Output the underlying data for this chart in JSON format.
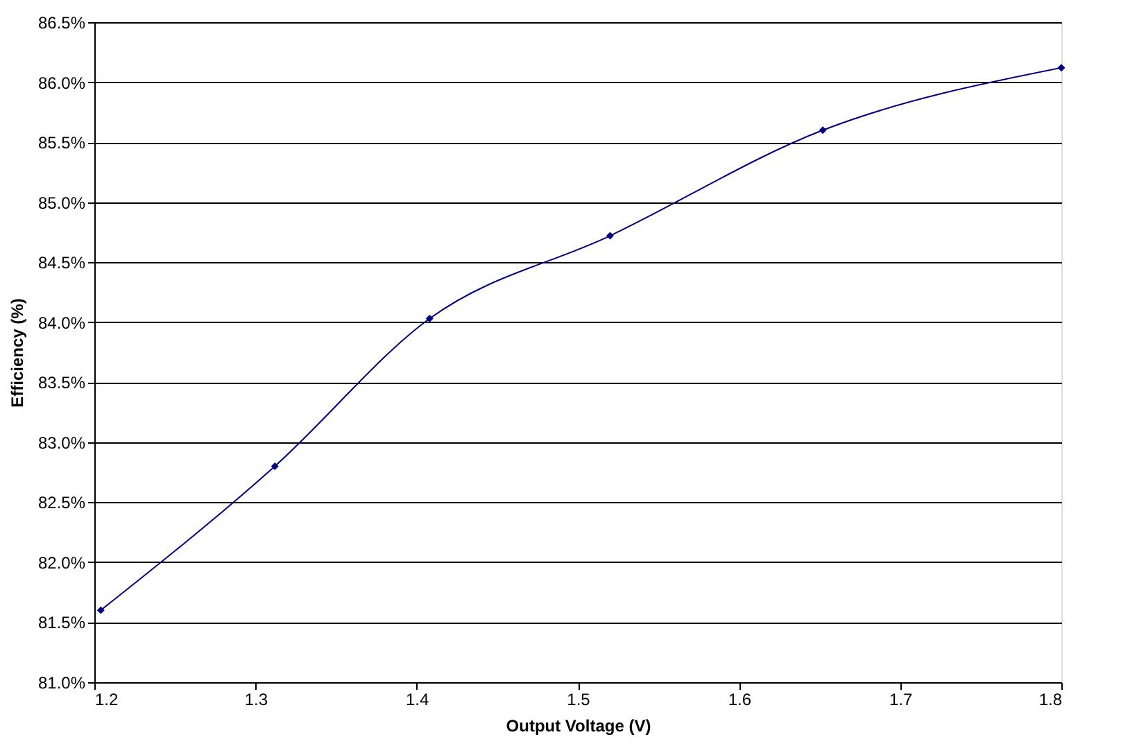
{
  "chart_data": {
    "type": "line",
    "xlabel": "Output Voltage (V)",
    "ylabel": "Efficiency (%)",
    "x": [
      1.204,
      1.312,
      1.408,
      1.52,
      1.652,
      1.8
    ],
    "series": [
      {
        "color": "#000080",
        "values": [
          81.6,
          82.8,
          84.03,
          84.72,
          85.6,
          86.12
        ]
      }
    ],
    "xlim": [
      1.2,
      1.8
    ],
    "xticks": [
      1.2,
      1.3,
      1.4,
      1.5,
      1.6,
      1.7,
      1.8
    ],
    "ylim": [
      81.0,
      86.5
    ],
    "yticks": [
      {
        "value": 81.0,
        "label": "81.0%"
      },
      {
        "value": 81.5,
        "label": "81.5%"
      },
      {
        "value": 82.0,
        "label": "82.0%"
      },
      {
        "value": 82.5,
        "label": "82.5%"
      },
      {
        "value": 83.0,
        "label": "83.0%"
      },
      {
        "value": 83.5,
        "label": "83.5%"
      },
      {
        "value": 84.0,
        "label": "84.0%"
      },
      {
        "value": 84.5,
        "label": "84.5%"
      },
      {
        "value": 85.0,
        "label": "85.0%"
      },
      {
        "value": 85.5,
        "label": "85.5%"
      },
      {
        "value": 86.0,
        "label": "86.0%"
      },
      {
        "value": 86.5,
        "label": "86.5%"
      }
    ],
    "grid": "y",
    "marker": "diamond",
    "line_style": "solid"
  }
}
